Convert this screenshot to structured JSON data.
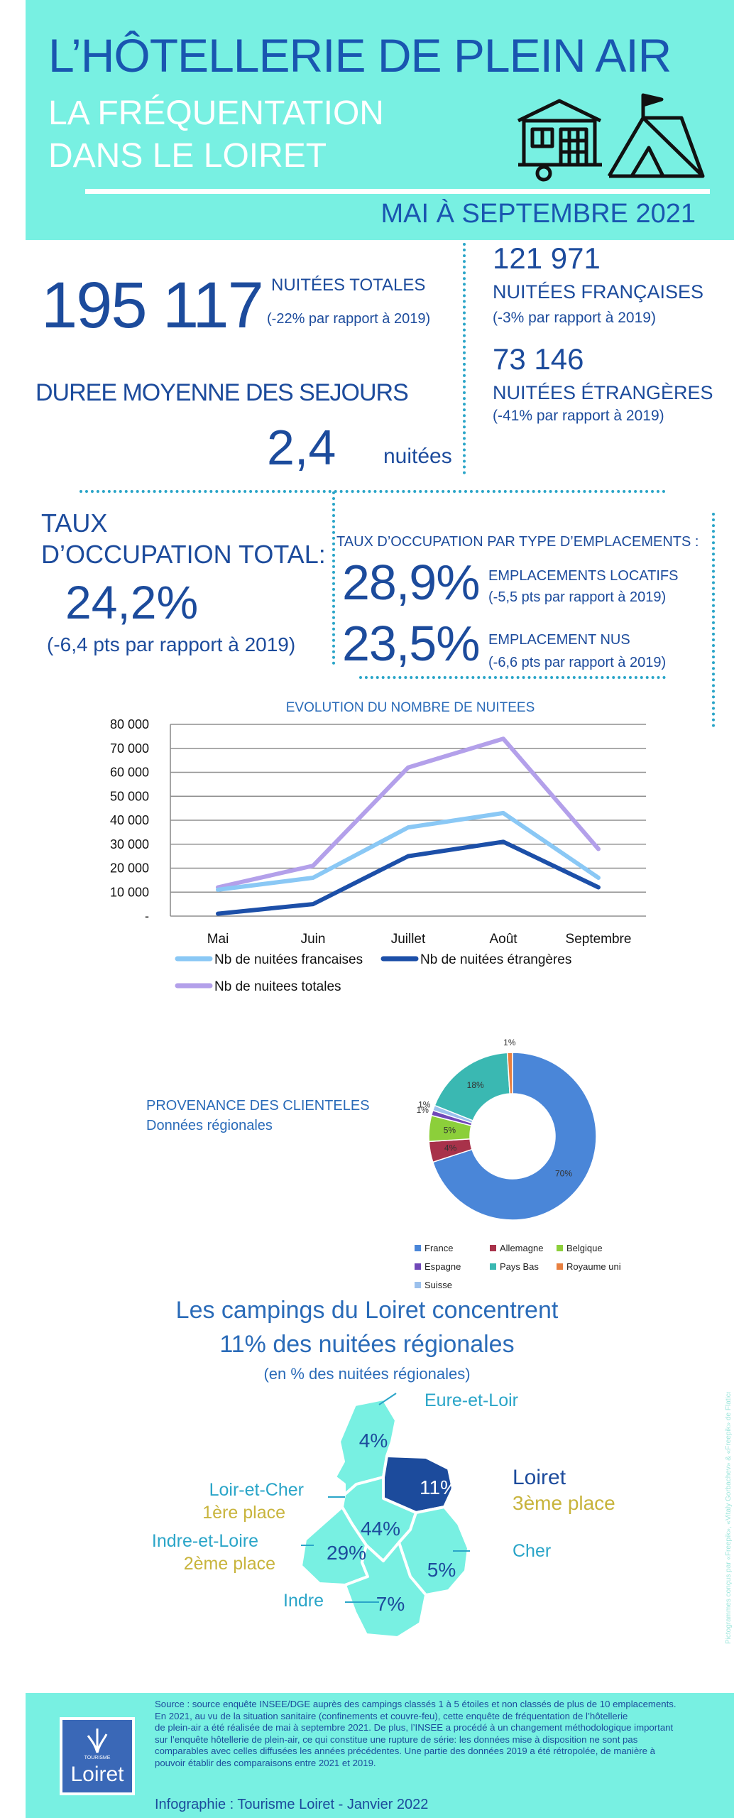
{
  "header": {
    "title": "L’HÔTELLERIE DE PLEIN AIR",
    "subtitle_line1": "LA FRÉQUENTATION",
    "subtitle_line2": "DANS LE LOIRET",
    "period": "MAI À SEPTEMBRE 2021",
    "icons": [
      "mobile-home-icon",
      "tent-icon"
    ]
  },
  "stats": {
    "total_nuitees": "195 117",
    "total_label": "NUITÉES TOTALES",
    "total_change": "(-22% par rapport à 2019)",
    "francaises_value": "121 971",
    "francaises_label": "NUITÉES FRANÇAISES",
    "francaises_change": "(-3% par rapport à 2019)",
    "etrangeres_value": "73 146",
    "etrangeres_label": "NUITÉES ÉTRANGÈRES",
    "etrangeres_change": "(-41% par rapport à 2019)",
    "duree_label": "DUREE MOYENNE DES SEJOURS",
    "duree_value": "2,4",
    "duree_unit": "nuitées"
  },
  "occupation": {
    "total_label_line1": "TAUX",
    "total_label_line2": "D’OCCUPATION TOTAL:",
    "total_value": "24,2%",
    "total_change": "(-6,4 pts par rapport à 2019)",
    "type_label": "TAUX D’OCCUPATION  PAR TYPE D’EMPLACEMENTS :",
    "locatifs_value": "28,9%",
    "locatifs_label": "EMPLACEMENTS LOCATIFS",
    "locatifs_change": "(-5,5 pts par rapport à 2019)",
    "nus_value": "23,5%",
    "nus_label": "EMPLACEMENT NUS",
    "nus_change": "(-6,6 pts par rapport à 2019)"
  },
  "chart_data": [
    {
      "type": "line",
      "title": "EVOLUTION DU NOMBRE DE NUITEES",
      "categories": [
        "Mai",
        "Juin",
        "Juillet",
        "Août",
        "Septembre"
      ],
      "ylim": [
        0,
        80000
      ],
      "y_ticks": [
        0,
        10000,
        20000,
        30000,
        40000,
        50000,
        60000,
        70000,
        80000
      ],
      "y_tick_labels": [
        "-",
        "10 000",
        "20 000",
        "30 000",
        "40 000",
        "50 000",
        "60 000",
        "70 000",
        "80 000"
      ],
      "grid": true,
      "legend_position": "bottom",
      "series": [
        {
          "name": "Nb de nuitées francaises",
          "color": "#8ac8f5",
          "values": [
            11000,
            16000,
            37000,
            43000,
            16000
          ]
        },
        {
          "name": "Nb de nuitées étrangères",
          "color": "#1c4fa8",
          "values": [
            1000,
            5000,
            25000,
            31000,
            12000
          ]
        },
        {
          "name": "Nb de nuitees totales",
          "color": "#b3a0ea",
          "values": [
            12000,
            21000,
            62000,
            74000,
            28000
          ]
        }
      ]
    },
    {
      "type": "pie",
      "title_line1": "PROVENANCE DES CLIENTELES",
      "title_line2": "Données régionales",
      "legend_position": "bottom",
      "slices": [
        {
          "name": "France",
          "value": 70,
          "label": "70%",
          "color": "#4a86d8"
        },
        {
          "name": "Allemagne",
          "value": 4,
          "label": "4%",
          "color": "#a8324a"
        },
        {
          "name": "Belgique",
          "value": 5,
          "label": "5%",
          "color": "#8ccf3a"
        },
        {
          "name": "Espagne",
          "value": 1,
          "label": "1%",
          "color": "#7048b8"
        },
        {
          "name": "Pays Bas",
          "value": 18,
          "label": "18%",
          "color": "#3ab8b2"
        },
        {
          "name": "Royaume uni",
          "value": 1,
          "label": "1%",
          "color": "#e88040"
        },
        {
          "name": "Suisse",
          "value": 1,
          "label": "1%",
          "color": "#9bc0ec"
        }
      ]
    }
  ],
  "map": {
    "title_line1": "Les campings du Loiret concentrent",
    "title_line2": "11% des nuitées régionales",
    "subtitle": "(en % des nuitées régionales)",
    "departments": [
      {
        "name": "Eure-et-Loir",
        "value": "4%"
      },
      {
        "name": "Loiret",
        "value": "11%",
        "rank": "3ème place"
      },
      {
        "name": "Loir-et-Cher",
        "value": "44%",
        "rank": "1ère place"
      },
      {
        "name": "Indre-et-Loire",
        "value": "29%",
        "rank": "2ème place"
      },
      {
        "name": "Cher",
        "value": "5%"
      },
      {
        "name": "Indre",
        "value": "7%"
      }
    ],
    "colors": {
      "region": "#78f0e2",
      "highlight": "#1c4b9c",
      "label": "#2aa5c8",
      "rank": "#c8b43c"
    }
  },
  "side_credit": "Pictogrammes conçus par «Freepik», «Vitaly Gorbachev» & «Freepik» de Flaticon",
  "footer": {
    "logo_small": "TOURISME",
    "logo_name": "Loiret",
    "source_lines": [
      "Source : source enquête INSEE/DGE auprès des campings classés 1 à 5 étoiles et non classés de plus de 10 emplacements.",
      "En 2021, au vu de la situation sanitaire (confinements et couvre-feu), cette enquête de fréquentation de l’hôtellerie",
      "de plein-air a été réalisée de mai à septembre 2021. De plus, l’INSEE a procédé à un changement méthodologique important",
      "sur l’enquête hôtellerie de plein-air,  ce qui constitue une rupture de série: les données mise à disposition ne sont pas",
      "comparables avec celles diffusées les années précédentes. Une partie des données 2019 a été rétropolée, de manière à",
      "pouvoir établir des comparaisons entre 2021 et 2019."
    ],
    "credit": "Infographie : Tourisme Loiret - Janvier 2022"
  }
}
